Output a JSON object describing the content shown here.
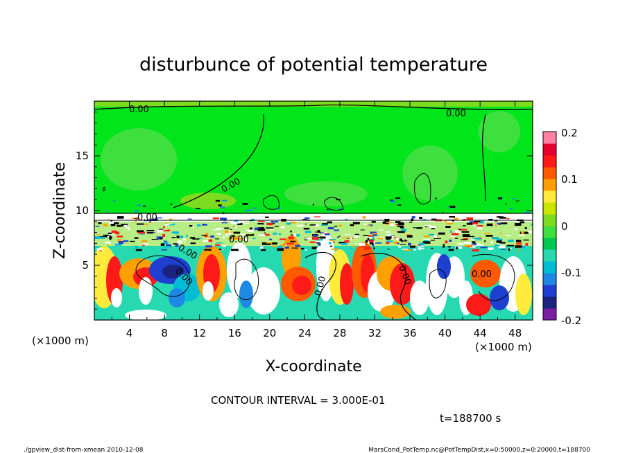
{
  "chart_data": {
    "type": "heatmap",
    "title": "disturbunce of potential temperature",
    "xlabel": "X-coordinate",
    "ylabel": "Z-coordinate",
    "x_unit_left": "(×1000 m)",
    "x_unit_right": "(×1000 m)",
    "x_ticks": [
      "4",
      "8",
      "12",
      "16",
      "20",
      "24",
      "28",
      "32",
      "36",
      "40",
      "44",
      "48"
    ],
    "y_ticks": [
      "5",
      "10",
      "15"
    ],
    "xlim": [
      0,
      50
    ],
    "ylim": [
      0,
      20
    ],
    "colorbar_ticks": [
      "0.2",
      "0.1",
      "0",
      "-0.1",
      "-0.2"
    ],
    "colorbar_range": [
      -0.2,
      0.2
    ],
    "contour_labels": [
      "0.00",
      "0.00",
      "0.00",
      "0.00",
      "0.00",
      "0.00",
      "0.00",
      "0.00",
      "0.00",
      "0.00"
    ],
    "contour_interval": "CONTOUR INTERVAL = 3.000E-01",
    "time": "t=188700 s",
    "footer_left": "./gpview_dist-from-xmean  2010-12-08",
    "footer_right": "MarsCond_PotTemp.nc@PotTempDist,x=0:50000,z=0:20000,t=188700",
    "colors": [
      "#7b1fa2",
      "#1a237e",
      "#1e3fcf",
      "#1e88e5",
      "#00bcd4",
      "#26d9b0",
      "#00c853",
      "#3ee03e",
      "#7ddc1f",
      "#c8e600",
      "#ffeb3b",
      "#ffa000",
      "#ff5a00",
      "#ff1a1a",
      "#e6002e",
      "#ff80a0"
    ]
  }
}
